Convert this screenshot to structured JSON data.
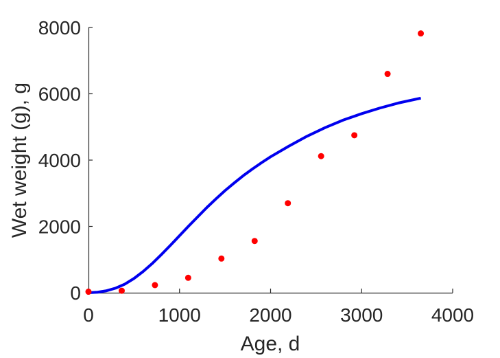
{
  "chart_data": {
    "type": "scatter",
    "title": "",
    "xlabel": "Age, d",
    "ylabel": "Wet weight (g), g",
    "xlim": [
      0,
      4000
    ],
    "ylim": [
      0,
      8000
    ],
    "xticks": [
      0,
      1000,
      2000,
      3000,
      4000
    ],
    "yticks": [
      0,
      2000,
      4000,
      6000,
      8000
    ],
    "xtick_labels": [
      "0",
      "1000",
      "2000",
      "3000",
      "4000"
    ],
    "ytick_labels": [
      "0",
      "2000",
      "4000",
      "6000",
      "8000"
    ],
    "grid": false,
    "legend": "none",
    "series": [
      {
        "kind": "points",
        "color": "#ff0000",
        "x": [
          0,
          365,
          730,
          1095,
          1460,
          1825,
          2190,
          2555,
          2920,
          3285,
          3650
        ],
        "y": [
          30,
          60,
          230,
          450,
          1030,
          1560,
          2700,
          4120,
          4750,
          6600,
          7820
        ]
      },
      {
        "kind": "curve",
        "color": "#0000ee",
        "x": [
          0,
          100,
          200,
          300,
          400,
          500,
          600,
          700,
          800,
          900,
          1000,
          1100,
          1200,
          1300,
          1400,
          1500,
          1600,
          1700,
          1800,
          1900,
          2000,
          2200,
          2400,
          2600,
          2800,
          3000,
          3200,
          3400,
          3650
        ],
        "y": [
          0,
          15,
          60,
          140,
          260,
          430,
          640,
          880,
          1150,
          1430,
          1720,
          2010,
          2290,
          2570,
          2830,
          3080,
          3310,
          3530,
          3730,
          3920,
          4100,
          4420,
          4720,
          4980,
          5210,
          5400,
          5570,
          5720,
          5870
        ]
      }
    ]
  }
}
